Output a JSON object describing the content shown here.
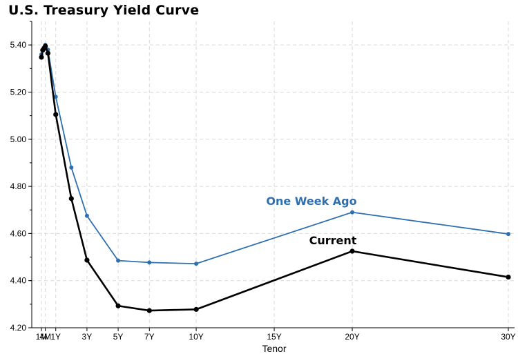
{
  "chart_data": {
    "type": "line",
    "title": "U.S. Treasury Yield Curve",
    "xlabel": "Tenor",
    "ylabel": "",
    "x_unit": "months",
    "xlim": [
      0,
      363
    ],
    "ylim": [
      4.2,
      5.5
    ],
    "yticks": [
      4.2,
      4.4,
      4.6,
      4.8,
      5.0,
      5.2,
      5.4
    ],
    "ytick_labels": [
      "4.20",
      "4.40",
      "4.60",
      "4.80",
      "5.00",
      "5.20",
      "5.40"
    ],
    "xticks": [
      {
        "x": 1,
        "label": "1M"
      },
      {
        "x": 4,
        "label": "4M"
      },
      {
        "x": 12,
        "label": "1Y"
      },
      {
        "x": 36,
        "label": "3Y"
      },
      {
        "x": 60,
        "label": "5Y"
      },
      {
        "x": 84,
        "label": "7Y"
      },
      {
        "x": 120,
        "label": "10Y"
      },
      {
        "x": 180,
        "label": "15Y"
      },
      {
        "x": 240,
        "label": "20Y"
      },
      {
        "x": 360,
        "label": "30Y"
      }
    ],
    "grid": true,
    "x": [
      1,
      2,
      3,
      4,
      6,
      12,
      24,
      36,
      60,
      84,
      120,
      240,
      360
    ],
    "series": [
      {
        "name": "One Week Ago",
        "color": "#2e6fb0",
        "values": [
          5.36,
          5.38,
          5.39,
          5.4,
          5.38,
          5.18,
          4.88,
          4.675,
          4.485,
          4.477,
          4.472,
          4.69,
          4.598
        ]
      },
      {
        "name": "Current",
        "color": "#000000",
        "values": [
          5.348,
          5.378,
          5.385,
          5.395,
          5.365,
          5.105,
          4.748,
          4.487,
          4.293,
          4.273,
          4.278,
          4.525,
          4.415
        ]
      }
    ]
  }
}
